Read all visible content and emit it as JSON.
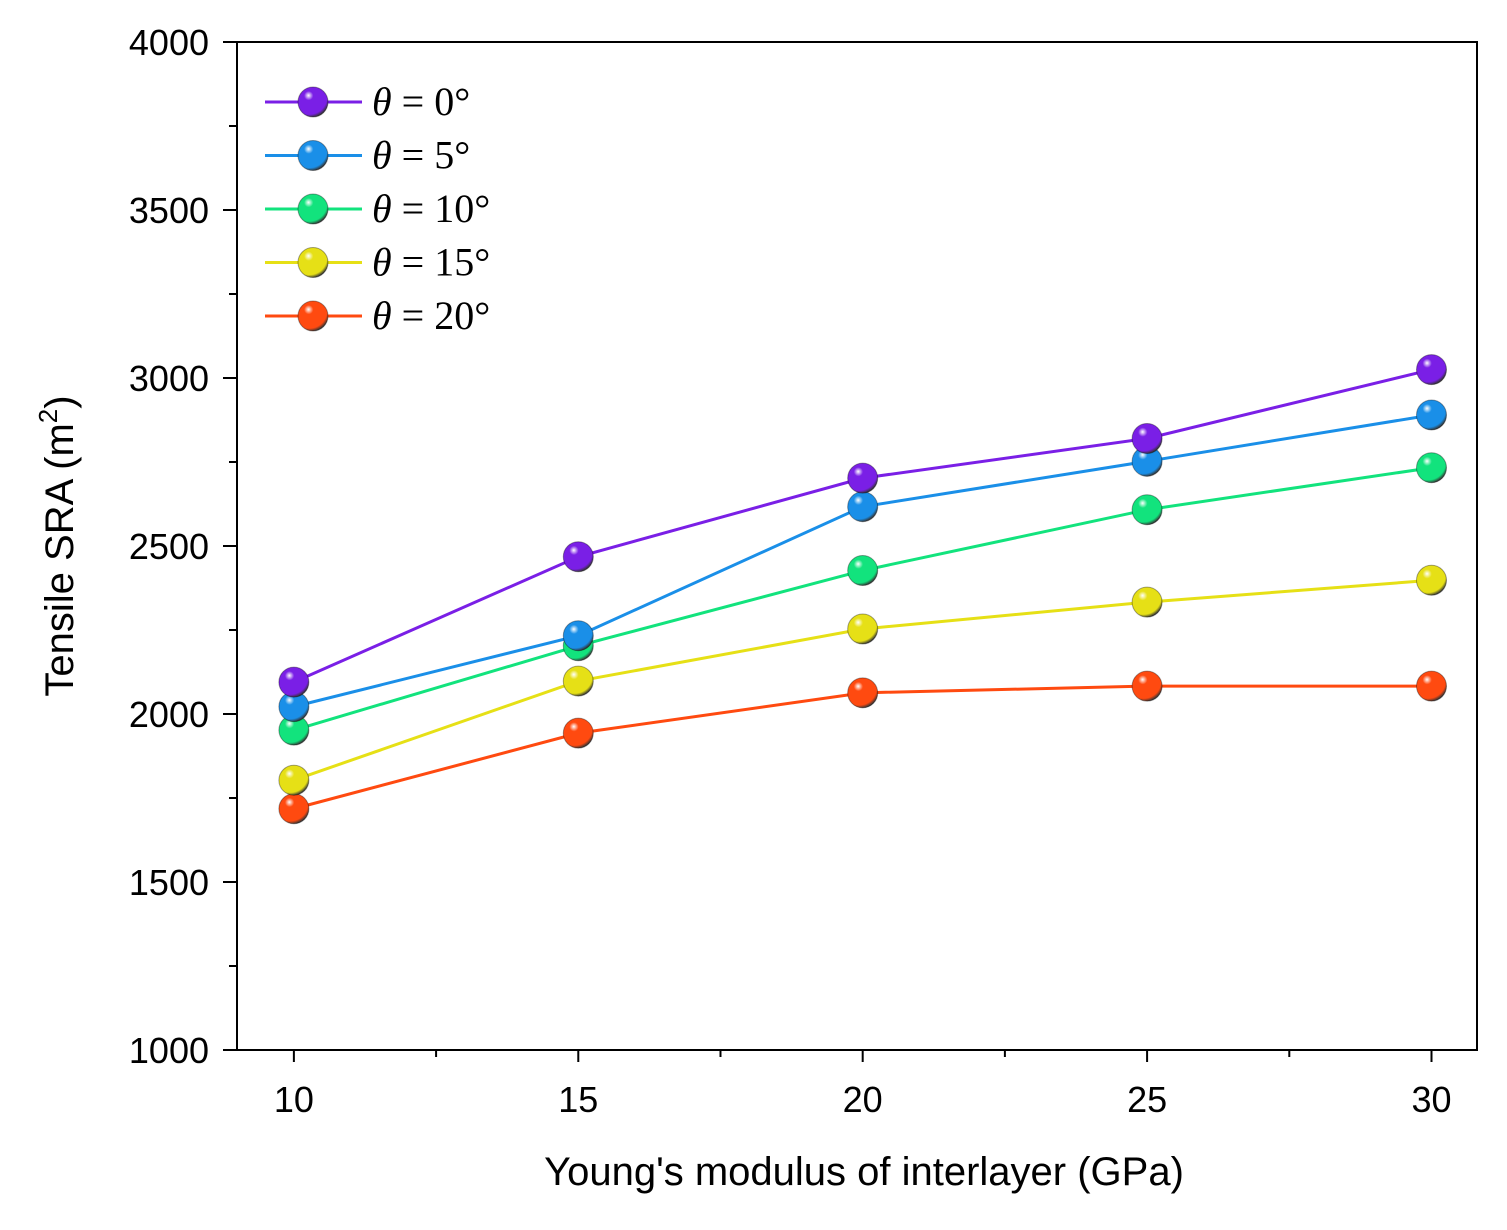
{
  "chart_data": {
    "type": "line",
    "xlabel": "Young's modulus of interlayer (GPa)",
    "ylabel_main": "Tensile SRA (m",
    "ylabel_sup": "2",
    "ylabel_close": ")",
    "xlim": [
      9,
      30.8
    ],
    "ylim": [
      1000,
      4000
    ],
    "xticks": [
      10,
      15,
      20,
      25,
      30
    ],
    "yticks": [
      1000,
      1500,
      2000,
      2500,
      3000,
      3500,
      4000
    ],
    "x": [
      10,
      15,
      20,
      25,
      30
    ],
    "legend_position": "top-left",
    "series": [
      {
        "name": "θ = 0°",
        "symbol": "θ",
        "rest": " = 0°",
        "color": "#7a1fe6",
        "values": [
          2095,
          2468,
          2702,
          2820,
          3025
        ]
      },
      {
        "name": "θ = 5°",
        "symbol": "θ",
        "rest": " = 5°",
        "color": "#1a8fe8",
        "values": [
          2022,
          2233,
          2617,
          2752,
          2890
        ]
      },
      {
        "name": "θ = 10°",
        "symbol": "θ",
        "rest": " = 10°",
        "color": "#12e37d",
        "values": [
          1952,
          2203,
          2427,
          2608,
          2733
        ]
      },
      {
        "name": "θ = 15°",
        "symbol": "θ",
        "rest": " = 15°",
        "color": "#e6e016",
        "values": [
          1803,
          2098,
          2253,
          2333,
          2398
        ]
      },
      {
        "name": "θ = 20°",
        "symbol": "θ",
        "rest": " = 20°",
        "color": "#ff4a10",
        "values": [
          1718,
          1943,
          2063,
          2083,
          2083
        ]
      }
    ]
  }
}
